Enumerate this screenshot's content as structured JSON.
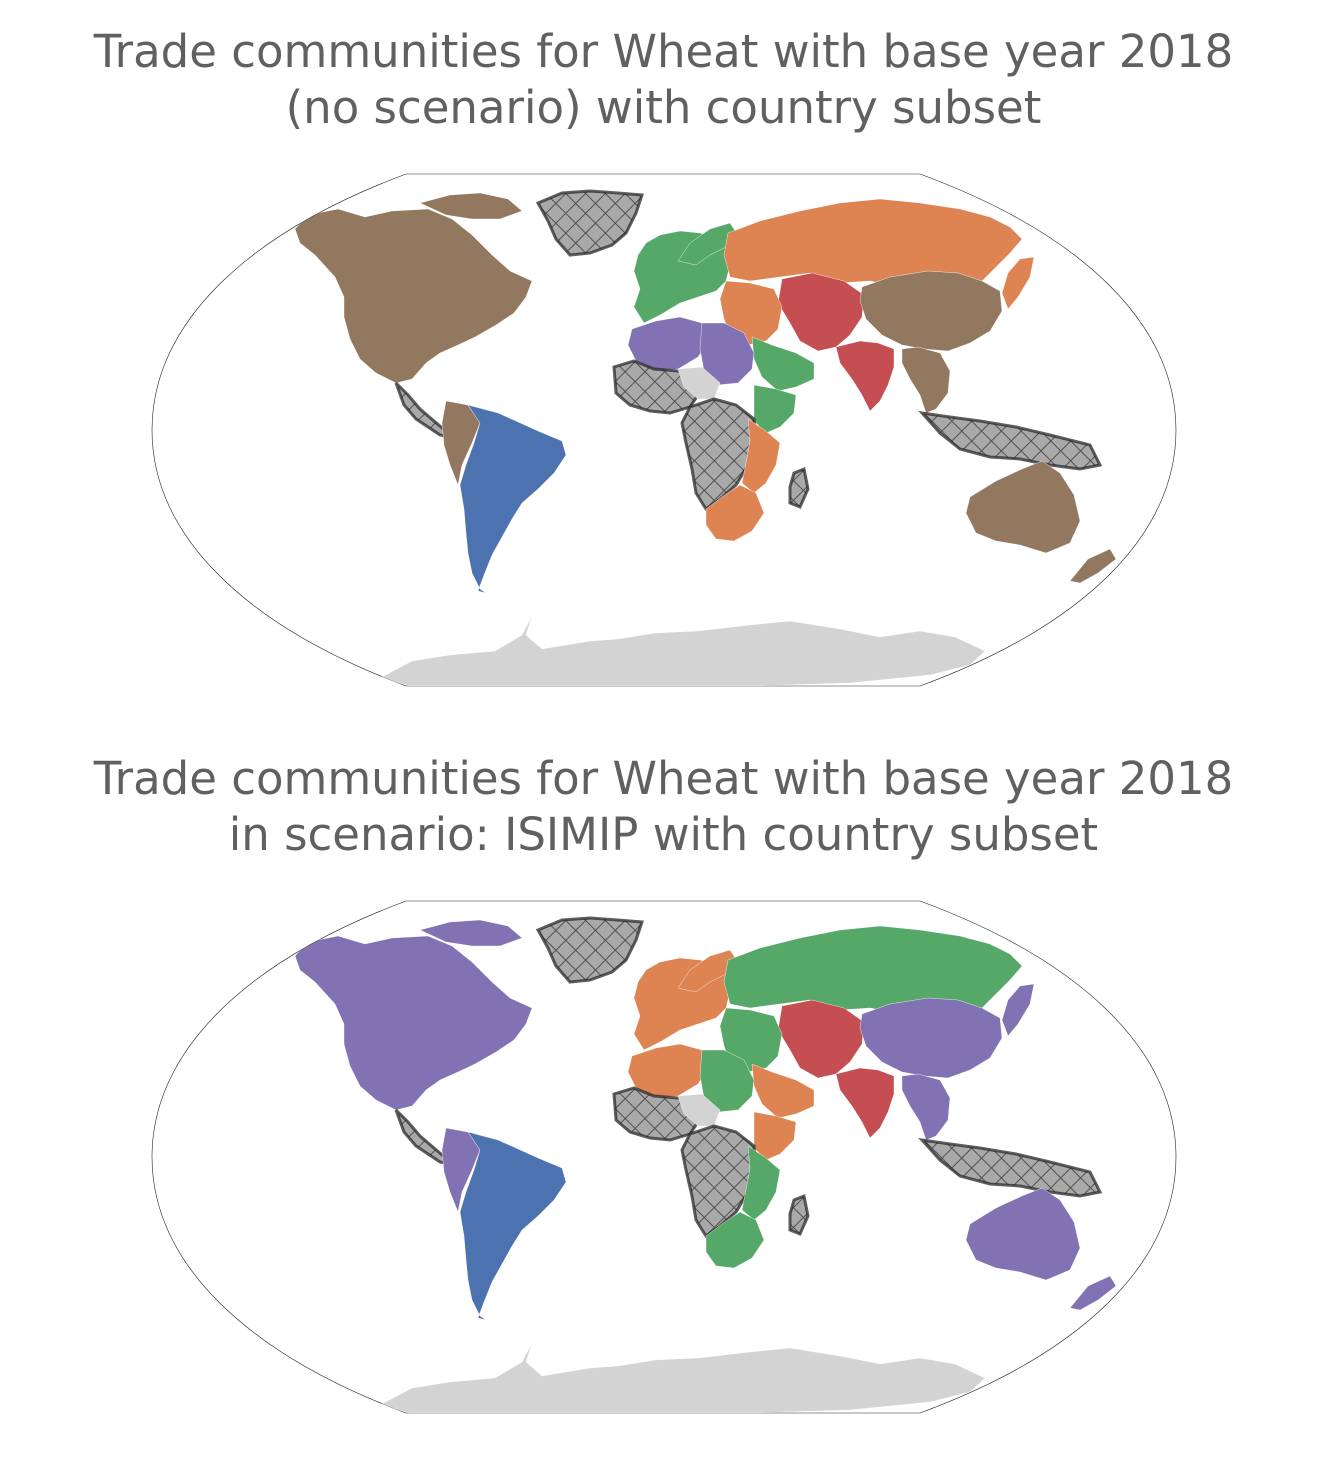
{
  "colors": {
    "blue": "#4c72b0",
    "green": "#55a868",
    "orange": "#dd8452",
    "red": "#c44e52",
    "purple": "#8172b3",
    "brown": "#937860",
    "no_data": "#d3d3d3",
    "excluded_hatched": "#a9a9a9",
    "ocean": "#ffffff",
    "title_text": "#606060"
  },
  "maps": [
    {
      "title_line1": "Trade communities for Wheat with base year 2018",
      "title_line2": "(no scenario) with country subset",
      "regions": {
        "north_america": "brown",
        "greenland": "excluded_hatched",
        "central_america": "excluded_hatched",
        "andes": "brown",
        "south_america": "blue",
        "europe": "green",
        "russia": "orange",
        "central_asia": "red",
        "china": "brown",
        "middle_east": "orange",
        "arabia": "green",
        "india": "red",
        "southeast_asia": "brown",
        "indonesia": "excluded_hatched",
        "north_africa_west": "purple",
        "north_africa_east": "purple",
        "west_africa": "excluded_hatched",
        "sahel": "no_data",
        "central_africa": "excluded_hatched",
        "east_africa": "orange",
        "horn_of_africa": "green",
        "southern_africa": "orange",
        "madagascar": "excluded_hatched",
        "australia": "brown",
        "new_zealand": "brown",
        "japan": "orange",
        "antarctica": "no_data"
      }
    },
    {
      "title_line1": "Trade communities for Wheat with base year 2018",
      "title_line2": "in scenario: ISIMIP with country subset",
      "regions": {
        "north_america": "purple",
        "greenland": "excluded_hatched",
        "central_america": "excluded_hatched",
        "andes": "purple",
        "south_america": "blue",
        "europe": "orange",
        "russia": "green",
        "central_asia": "red",
        "china": "purple",
        "middle_east": "green",
        "arabia": "orange",
        "india": "red",
        "southeast_asia": "purple",
        "indonesia": "excluded_hatched",
        "north_africa_west": "orange",
        "north_africa_east": "green",
        "west_africa": "excluded_hatched",
        "sahel": "no_data",
        "central_africa": "excluded_hatched",
        "east_africa": "green",
        "horn_of_africa": "orange",
        "southern_africa": "green",
        "madagascar": "excluded_hatched",
        "australia": "purple",
        "new_zealand": "purple",
        "japan": "purple",
        "antarctica": "no_data"
      }
    }
  ]
}
